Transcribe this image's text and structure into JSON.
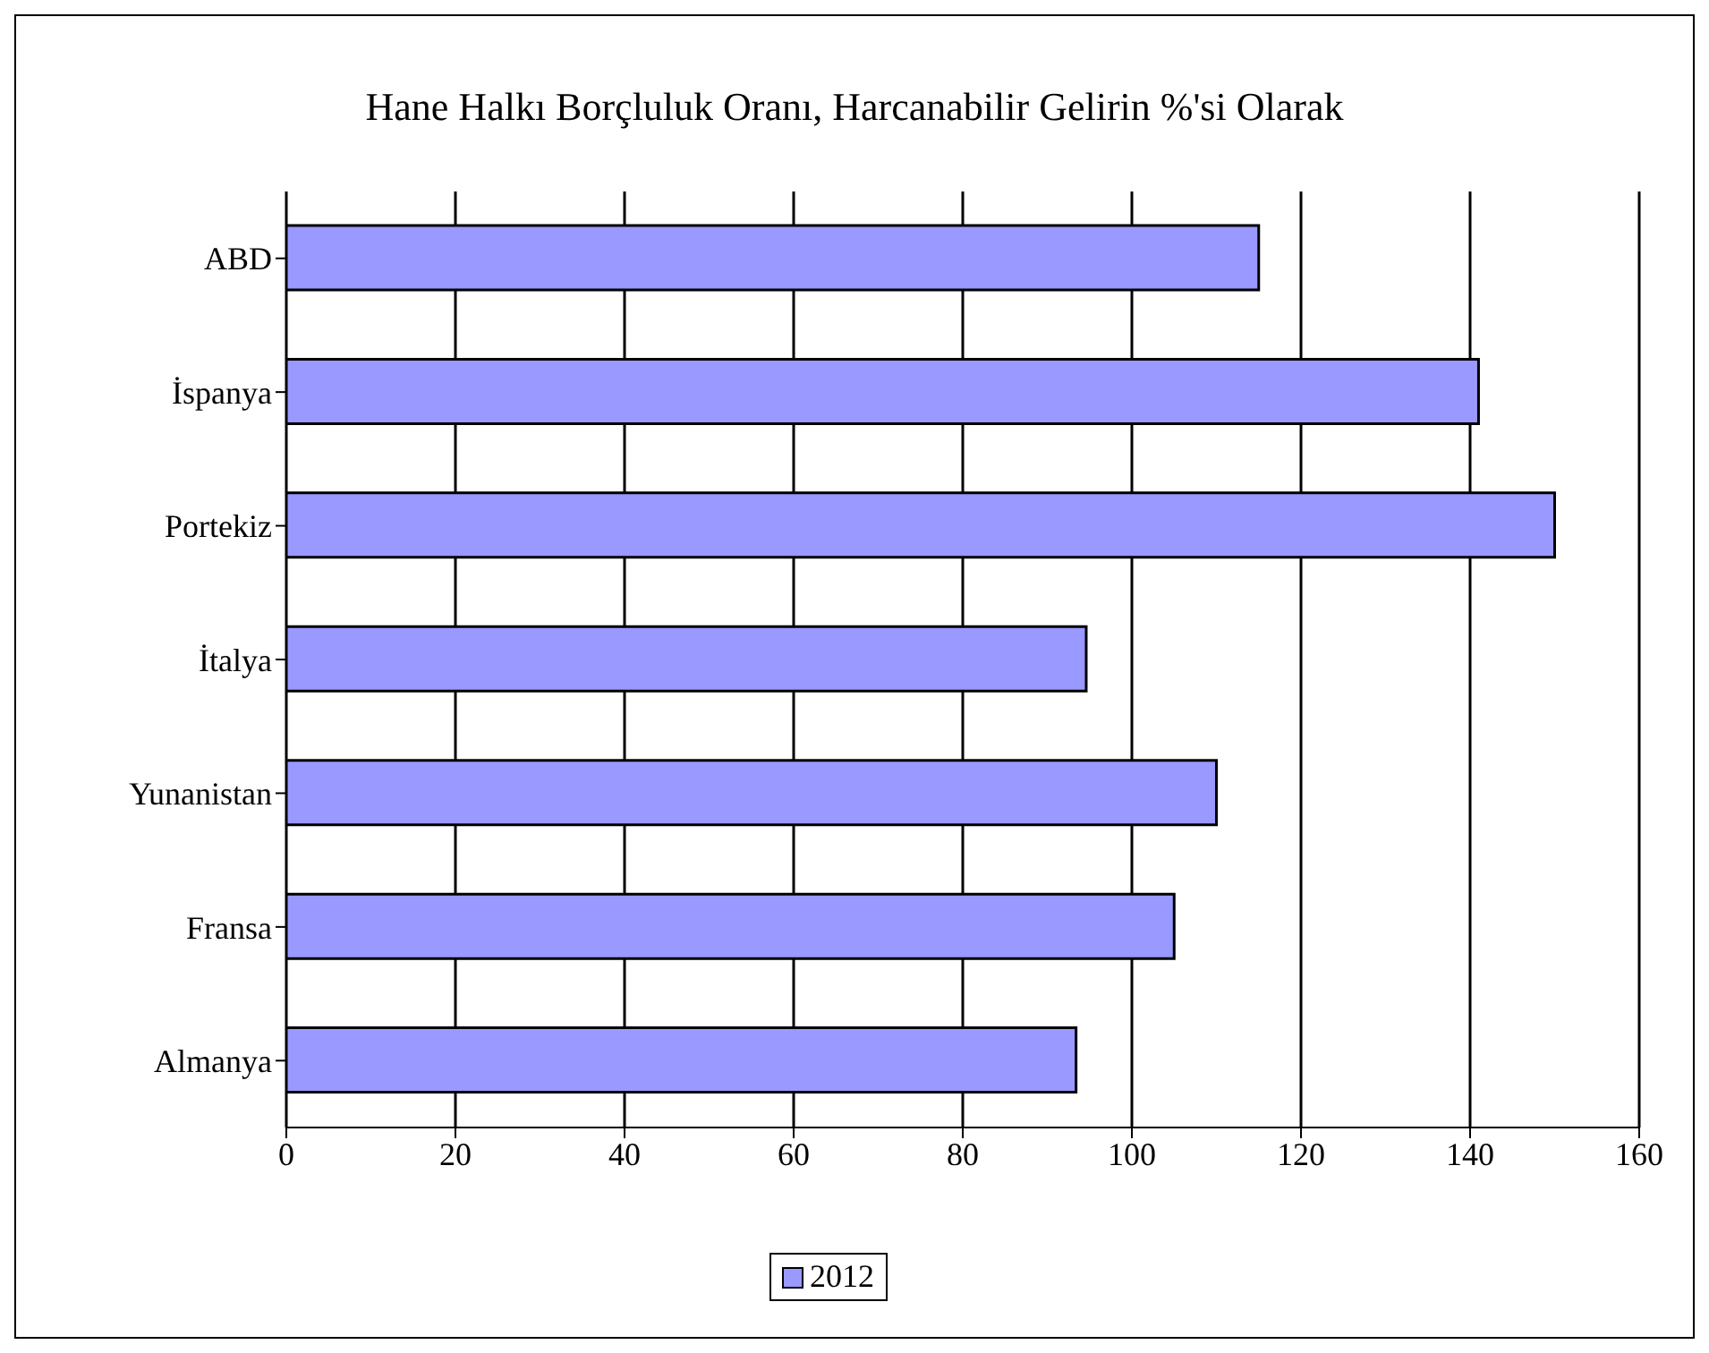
{
  "chart_data": {
    "type": "bar",
    "orientation": "horizontal",
    "title": "Hane Halkı Borçluluk Oranı, Harcanabilir Gelirin %'si Olarak",
    "categories": [
      "ABD",
      "İspanya",
      "Portekiz",
      "İtalya",
      "Yunanistan",
      "Fransa",
      "Almanya"
    ],
    "series": [
      {
        "name": "2012",
        "color": "#9999ff",
        "values": [
          115,
          141,
          150,
          94.6,
          110,
          105,
          93.4
        ]
      }
    ],
    "xlim": [
      0,
      160
    ],
    "xticks": [
      0,
      20,
      40,
      60,
      80,
      100,
      120,
      140,
      160
    ],
    "grid": "x",
    "legend": "bottom"
  }
}
